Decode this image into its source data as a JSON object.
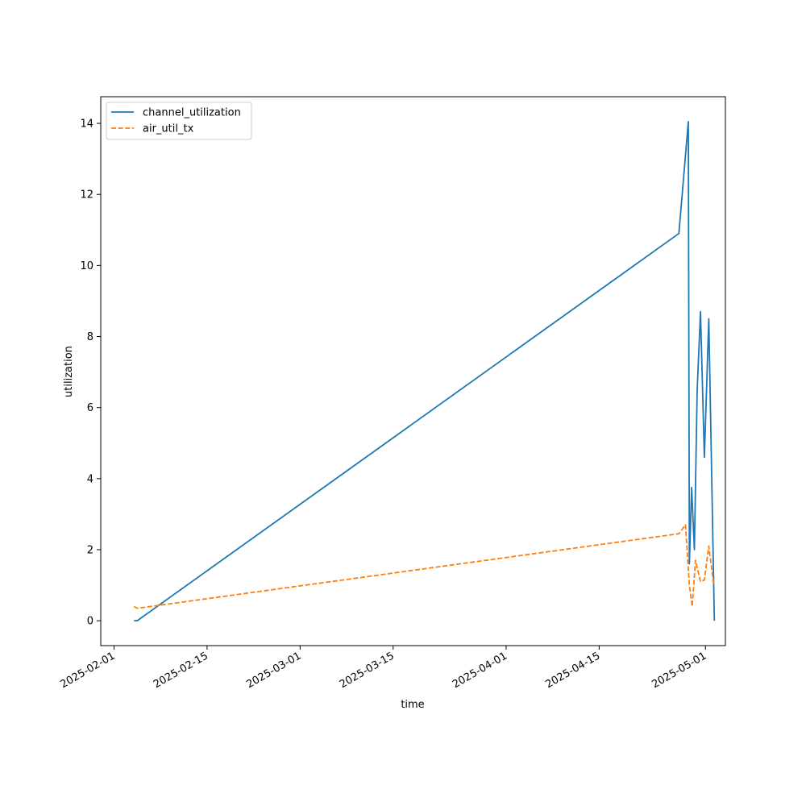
{
  "chart_data": {
    "type": "line",
    "xlabel": "time",
    "ylabel": "utilization",
    "x_axis_type": "date",
    "xlim": [
      "2025-01-30",
      "2025-05-04"
    ],
    "ylim": [
      -0.7,
      14.75
    ],
    "x_ticks": [
      "2025-02-01",
      "2025-02-15",
      "2025-03-01",
      "2025-03-15",
      "2025-04-01",
      "2025-04-15",
      "2025-05-01"
    ],
    "y_ticks": [
      0,
      2,
      4,
      6,
      8,
      10,
      12,
      14
    ],
    "grid": false,
    "legend": "upper-left",
    "series": [
      {
        "name": "channel_utilization",
        "color": "#1f77b4",
        "style": "solid",
        "points": [
          [
            "2025-02-04 00:00",
            0.0
          ],
          [
            "2025-02-04 12:00",
            0.0
          ],
          [
            "2025-04-27 00:00",
            10.9
          ],
          [
            "2025-04-28 10:00",
            14.05
          ],
          [
            "2025-04-28 14:00",
            1.6
          ],
          [
            "2025-04-28 22:00",
            3.75
          ],
          [
            "2025-04-29 08:00",
            2.0
          ],
          [
            "2025-04-29 18:00",
            6.5
          ],
          [
            "2025-04-30 06:00",
            8.7
          ],
          [
            "2025-04-30 20:00",
            4.6
          ],
          [
            "2025-05-01 12:00",
            8.5
          ],
          [
            "2025-05-02 08:00",
            0.0
          ]
        ]
      },
      {
        "name": "air_util_tx",
        "color": "#ff7f0e",
        "style": "dashed",
        "points": [
          [
            "2025-02-04 00:00",
            0.4
          ],
          [
            "2025-02-04 12:00",
            0.35
          ],
          [
            "2025-04-27 00:00",
            2.45
          ],
          [
            "2025-04-28 00:00",
            2.7
          ],
          [
            "2025-04-28 14:00",
            1.0
          ],
          [
            "2025-04-29 00:00",
            0.4
          ],
          [
            "2025-04-29 12:00",
            1.7
          ],
          [
            "2025-04-30 06:00",
            1.1
          ],
          [
            "2025-04-30 20:00",
            1.15
          ],
          [
            "2025-05-01 12:00",
            2.1
          ],
          [
            "2025-05-02 06:00",
            1.0
          ]
        ]
      }
    ]
  }
}
